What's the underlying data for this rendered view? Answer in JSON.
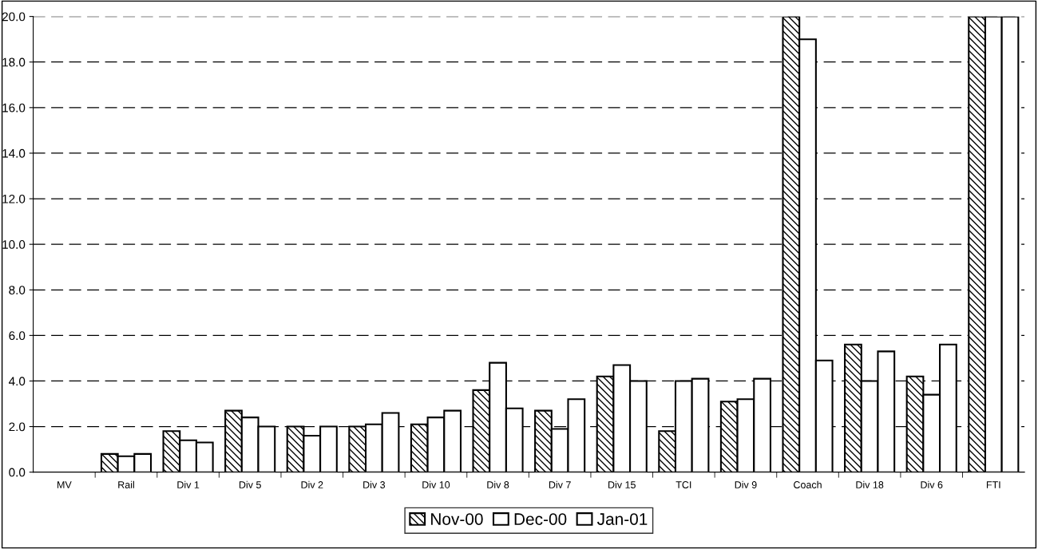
{
  "chart_data": {
    "type": "bar",
    "categories": [
      "MV",
      "Rail",
      "Div 1",
      "Div 5",
      "Div 2",
      "Div 3",
      "Div 10",
      "Div 8",
      "Div 7",
      "Div 15",
      "TCI",
      "Div 9",
      "Coach",
      "Div 18",
      "Div 6",
      "FTI"
    ],
    "series": [
      {
        "name": "Nov-00",
        "color": "#000000",
        "values": [
          null,
          0.8,
          1.8,
          2.7,
          2.0,
          2.0,
          2.1,
          3.6,
          2.7,
          4.2,
          1.8,
          3.1,
          20.0,
          5.6,
          4.2,
          20.0
        ]
      },
      {
        "name": "Dec-00",
        "color": "#ffffff",
        "values": [
          null,
          0.7,
          1.4,
          2.4,
          1.6,
          2.1,
          2.4,
          4.8,
          1.9,
          4.7,
          4.0,
          3.2,
          19.0,
          4.0,
          3.4,
          20.0
        ]
      },
      {
        "name": "Jan-01",
        "color": "#ffffff",
        "values": [
          null,
          0.8,
          1.3,
          2.0,
          2.0,
          2.6,
          2.7,
          2.8,
          3.2,
          4.0,
          4.1,
          4.1,
          4.9,
          5.3,
          5.6,
          20.0
        ]
      }
    ],
    "ylim": [
      0,
      20
    ],
    "yticks": [
      {
        "value": 0,
        "label": "0.0"
      },
      {
        "value": 2,
        "label": "2.0"
      },
      {
        "value": 4,
        "label": "4.0"
      },
      {
        "value": 6,
        "label": "6.0"
      },
      {
        "value": 8,
        "label": "8.0"
      },
      {
        "value": 10,
        "label": "10.0"
      },
      {
        "value": 12,
        "label": "12.0"
      },
      {
        "value": 14,
        "label": "14.0"
      },
      {
        "value": 16,
        "label": "16.0"
      },
      {
        "value": 18,
        "label": "18.0"
      },
      {
        "value": 20,
        "label": "20.0"
      }
    ],
    "grid": "y",
    "legend": "bottom"
  }
}
